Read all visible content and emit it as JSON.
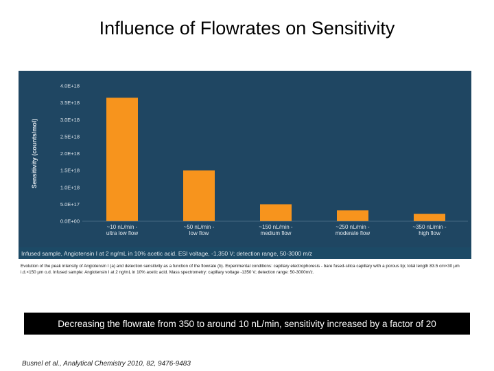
{
  "slide": {
    "title": "Influence of Flowrates on Sensitivity",
    "caption": "Evolution of the peak intensity of Angiotensin I (a) and detection sensitivity as a function of the flowrate (b). Experimental conditions: capillary electrophoresis - bare fused-silica capillary with a porous tip; total length 83.5 cm×30 µm i.d.×150 µm o.d. Infused sample: Angiotensin I at 2 ng/mL in 10% acetic acid. Mass spectrometry: capillary voltage -1350 V; detection range: 50-3000m/z.",
    "conclusion": "Decreasing the flowrate from 350 to around 10 nL/min, sensitivity increased by a factor of 20",
    "reference": "Busnel et al., Analytical Chemistry 2010, 82, 9476-9483"
  },
  "colors": {
    "panel_bg": "#1f4662",
    "bar": "#f7941d",
    "axis_text": "#dfe6ec",
    "footer_bg": "#1c4a66"
  },
  "chart_data": {
    "type": "bar",
    "title": "",
    "xlabel": "",
    "ylabel": "Sensitivity (counts/mol)",
    "categories": [
      [
        "~10 nL/min -",
        "ultra low flow"
      ],
      [
        "~50 nL/min -",
        "low flow"
      ],
      [
        "~150 nL/min -",
        "medium flow"
      ],
      [
        "~250 nL/min -",
        "moderate flow"
      ],
      [
        "~350 nL/min -",
        "high flow"
      ]
    ],
    "values": [
      3.65e+18,
      1.5e+18,
      5e+17,
      3.2e+17,
      2.2e+17
    ],
    "ylim": [
      0,
      4e+18
    ],
    "yticks": [
      0,
      5e+17,
      1e+18,
      1.5e+18,
      2e+18,
      2.5e+18,
      3e+18,
      3.5e+18,
      4e+18
    ],
    "ytick_labels": [
      "0.0E+00",
      "5.0E+17",
      "1.0E+18",
      "1.5E+18",
      "2.0E+18",
      "2.5E+18",
      "3.0E+18",
      "3.5E+18",
      "4.0E+18"
    ],
    "grid": false,
    "legend": "none",
    "footnote": "Infused sample, Angiotensin I at 2 ng/mL in 10% acetic acid. ESI voltage, -1,350 V; detection range, 50-3000 m/z"
  }
}
